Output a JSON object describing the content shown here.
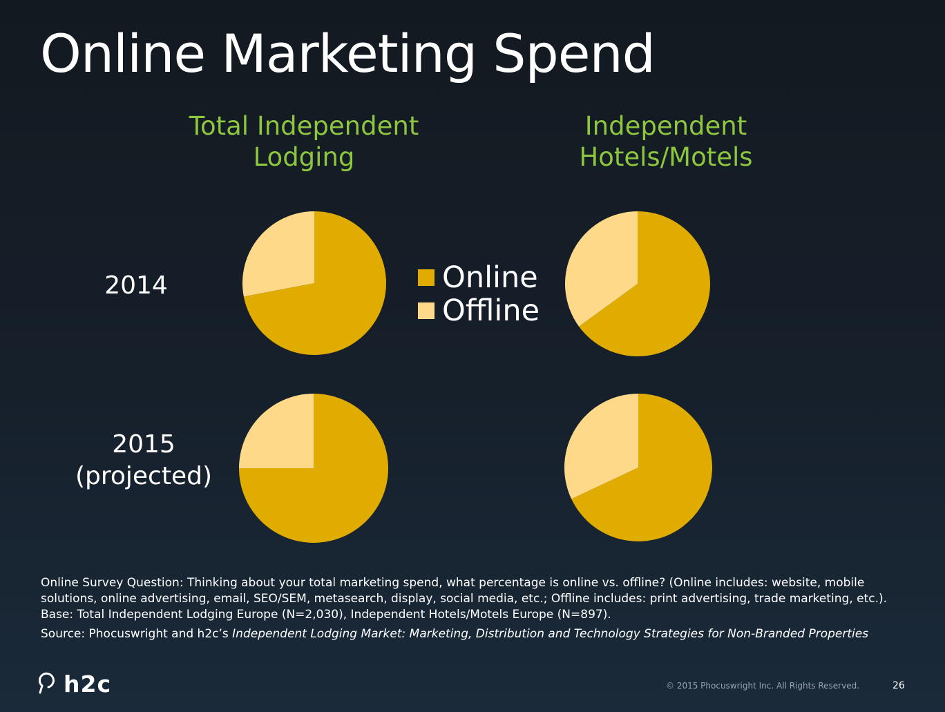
{
  "slide": {
    "title": "Online Marketing Spend",
    "footnote": "Online Survey Question: Thinking about your total marketing spend, what percentage is online vs. offline? (Online includes: website, mobile solutions, online advertising, email, SEO/SEM, metasearch, display, social media, etc.; Offline includes: print advertising, trade marketing, etc.). Base: Total Independent Lodging Europe (N=2,030), Independent Hotels/Motels Europe (N=897).",
    "source_prefix": "Source: Phocuswright and h2c’s ",
    "source_title": "Independent Lodging Market: Marketing, Distribution and Technology Strategies for Non-Branded Properties",
    "logo_text": "h2c",
    "copyright": "© 2015 Phocuswright Inc. All Rights Reserved.",
    "page_number": "26"
  },
  "columns": [
    {
      "line1": "Total Independent",
      "line2": "Lodging"
    },
    {
      "line1": "Independent",
      "line2": "Hotels/Motels"
    }
  ],
  "rows": [
    {
      "line1": "2014",
      "line2": ""
    },
    {
      "line1": "2015",
      "line2": "(projected)"
    }
  ],
  "legend": [
    {
      "label": "Online",
      "color": "#e0ac00"
    },
    {
      "label": "Offline",
      "color": "#ffd98a"
    }
  ],
  "chart_data": [
    {
      "type": "pie",
      "group": "Total Independent Lodging",
      "period": "2014",
      "labels": [
        "Online",
        "Offline"
      ],
      "values": [
        72,
        28
      ],
      "colors": [
        "#e0ac00",
        "#ffd98a"
      ]
    },
    {
      "type": "pie",
      "group": "Independent Hotels/Motels",
      "period": "2014",
      "labels": [
        "Online",
        "Offline"
      ],
      "values": [
        65,
        35
      ],
      "colors": [
        "#e0ac00",
        "#ffd98a"
      ]
    },
    {
      "type": "pie",
      "group": "Total Independent Lodging",
      "period": "2015 (projected)",
      "labels": [
        "Online",
        "Offline"
      ],
      "values": [
        75,
        25
      ],
      "colors": [
        "#e0ac00",
        "#ffd98a"
      ]
    },
    {
      "type": "pie",
      "group": "Independent Hotels/Motels",
      "period": "2015 (projected)",
      "labels": [
        "Online",
        "Offline"
      ],
      "values": [
        68,
        32
      ],
      "colors": [
        "#e0ac00",
        "#ffd98a"
      ]
    }
  ]
}
